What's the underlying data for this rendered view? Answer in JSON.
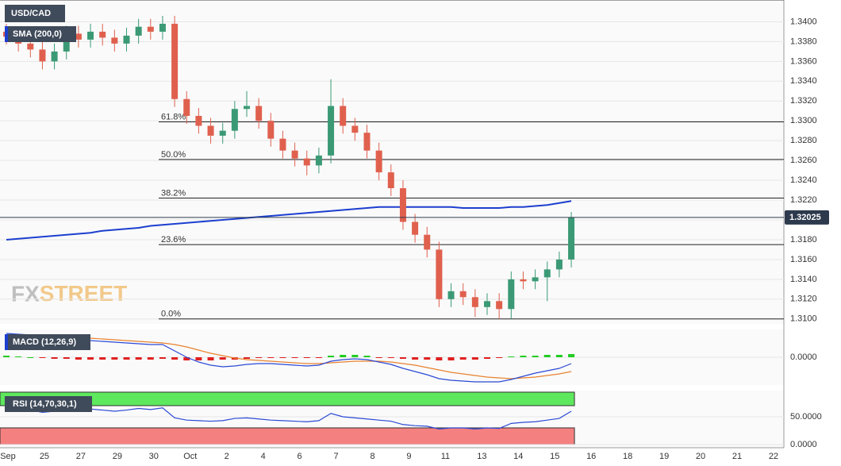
{
  "chart_data": [
    {
      "type": "candlestick",
      "title": "USD/CAD",
      "ylim": [
        1.3095,
        1.3422
      ],
      "yticks": [
        {
          "value": 1.31,
          "label": "1.3100"
        },
        {
          "value": 1.312,
          "label": "1.3120"
        },
        {
          "value": 1.314,
          "label": "1.3140"
        },
        {
          "value": 1.316,
          "label": "1.3160"
        },
        {
          "value": 1.318,
          "label": "1.3180"
        },
        {
          "value": 1.32,
          "label": "1.3200"
        },
        {
          "value": 1.322,
          "label": "1.3220"
        },
        {
          "value": 1.324,
          "label": "1.3240"
        },
        {
          "value": 1.326,
          "label": "1.3260"
        },
        {
          "value": 1.328,
          "label": "1.3280"
        },
        {
          "value": 1.33,
          "label": "1.3300"
        },
        {
          "value": 1.332,
          "label": "1.3320"
        },
        {
          "value": 1.334,
          "label": "1.3340"
        },
        {
          "value": 1.336,
          "label": "1.3360"
        },
        {
          "value": 1.338,
          "label": "1.3380"
        },
        {
          "value": 1.34,
          "label": "1.3400"
        }
      ],
      "xlabels": [
        "Sep",
        "25",
        "27",
        "29",
        "30",
        "Oct",
        "2",
        "4",
        "6",
        "7",
        "8",
        "9",
        "11",
        "13",
        "14",
        "15",
        "16",
        "18",
        "19",
        "20",
        "21",
        "22"
      ],
      "up_color": "#3b9a75",
      "down_color": "#e0604e",
      "grid": true,
      "open": [
        1.339,
        1.3385,
        1.3378,
        1.3372,
        1.336,
        1.337,
        1.3388,
        1.3382,
        1.339,
        1.3384,
        1.3378,
        1.3386,
        1.3395,
        1.339,
        1.3398,
        1.3322,
        1.3305,
        1.3295,
        1.3285,
        1.329,
        1.3312,
        1.3315,
        1.33,
        1.3282,
        1.327,
        1.3262,
        1.3255,
        1.3265,
        1.3315,
        1.3295,
        1.3288,
        1.327,
        1.3248,
        1.3232,
        1.3198,
        1.3185,
        1.317,
        1.312,
        1.3128,
        1.3122,
        1.3112,
        1.3118,
        1.311,
        1.314,
        1.3138,
        1.3142,
        1.315,
        1.316
      ],
      "high": [
        1.3398,
        1.3393,
        1.3386,
        1.338,
        1.3378,
        1.3396,
        1.3396,
        1.3398,
        1.3398,
        1.3392,
        1.3394,
        1.3403,
        1.3403,
        1.3406,
        1.3406,
        1.333,
        1.3313,
        1.3303,
        1.3298,
        1.332,
        1.333,
        1.3323,
        1.3308,
        1.329,
        1.3278,
        1.327,
        1.3273,
        1.3342,
        1.3323,
        1.3303,
        1.3296,
        1.3278,
        1.3256,
        1.324,
        1.3206,
        1.3193,
        1.3178,
        1.3136,
        1.3136,
        1.313,
        1.3126,
        1.3126,
        1.3148,
        1.3148,
        1.315,
        1.3158,
        1.3168,
        1.3208
      ],
      "low": [
        1.3377,
        1.337,
        1.3364,
        1.3352,
        1.3352,
        1.3362,
        1.3374,
        1.3374,
        1.3376,
        1.337,
        1.337,
        1.3378,
        1.3382,
        1.3382,
        1.3314,
        1.3297,
        1.3287,
        1.3277,
        1.3277,
        1.3282,
        1.3304,
        1.3292,
        1.3274,
        1.3262,
        1.3254,
        1.3245,
        1.3247,
        1.3257,
        1.3287,
        1.328,
        1.3262,
        1.324,
        1.3224,
        1.319,
        1.3177,
        1.3162,
        1.3112,
        1.3112,
        1.3114,
        1.3102,
        1.3104,
        1.31,
        1.31,
        1.313,
        1.313,
        1.3118,
        1.3142,
        1.3152
      ],
      "close": [
        1.3385,
        1.3378,
        1.3372,
        1.336,
        1.337,
        1.3388,
        1.3382,
        1.339,
        1.3384,
        1.3378,
        1.3386,
        1.3395,
        1.339,
        1.3398,
        1.3322,
        1.3305,
        1.3295,
        1.3285,
        1.329,
        1.3312,
        1.3315,
        1.33,
        1.3282,
        1.327,
        1.3262,
        1.3255,
        1.3265,
        1.3315,
        1.3295,
        1.3288,
        1.327,
        1.3248,
        1.3232,
        1.3198,
        1.3185,
        1.317,
        1.312,
        1.3128,
        1.3122,
        1.3112,
        1.3118,
        1.311,
        1.314,
        1.3138,
        1.3142,
        1.315,
        1.316,
        1.32025
      ],
      "sma": {
        "name": "SMA (200,0)",
        "color": "#1c3fcf",
        "values": [
          1.318,
          1.3181,
          1.3182,
          1.3183,
          1.3184,
          1.3185,
          1.3186,
          1.3187,
          1.3189,
          1.319,
          1.3191,
          1.3192,
          1.3194,
          1.3195,
          1.3196,
          1.3197,
          1.3198,
          1.3199,
          1.32,
          1.3201,
          1.3202,
          1.3203,
          1.3204,
          1.3205,
          1.3206,
          1.3207,
          1.3208,
          1.3209,
          1.321,
          1.3211,
          1.3212,
          1.3213,
          1.3213,
          1.3213,
          1.3213,
          1.3213,
          1.3213,
          1.3213,
          1.3212,
          1.3212,
          1.3212,
          1.3212,
          1.3213,
          1.3213,
          1.3214,
          1.3215,
          1.3217,
          1.3219
        ]
      },
      "fib": [
        {
          "label": "61.8%",
          "value": 1.3299
        },
        {
          "label": "50.0%",
          "value": 1.3261
        },
        {
          "label": "38.2%",
          "value": 1.3222
        },
        {
          "label": "23.6%",
          "value": 1.3175
        },
        {
          "label": "0.0%",
          "value": 1.31
        }
      ],
      "last": 1.32025
    },
    {
      "type": "macd",
      "title": "MACD (12,26,9)",
      "ylim": [
        -0.0035,
        0.0035
      ],
      "yticks": [
        {
          "value": 0,
          "label": "0.0000"
        }
      ],
      "macd": {
        "color": "#2b4ad6",
        "values": [
          0.003,
          0.0029,
          0.0028,
          0.0026,
          0.0025,
          0.0024,
          0.0022,
          0.0021,
          0.002,
          0.0019,
          0.0018,
          0.0017,
          0.0016,
          0.0016,
          0.0008,
          0.0,
          -0.0006,
          -0.001,
          -0.0012,
          -0.0011,
          -0.0009,
          -0.0008,
          -0.0008,
          -0.0009,
          -0.001,
          -0.0011,
          -0.001,
          -0.0005,
          -0.0003,
          -0.0002,
          -0.0003,
          -0.0006,
          -0.0009,
          -0.0014,
          -0.0018,
          -0.0022,
          -0.0027,
          -0.0029,
          -0.003,
          -0.0031,
          -0.0031,
          -0.0031,
          -0.0028,
          -0.0024,
          -0.002,
          -0.0017,
          -0.0014,
          -0.0008
        ]
      },
      "signal": {
        "color": "#e8822e",
        "values": [
          0.0028,
          0.0028,
          0.0028,
          0.0027,
          0.0027,
          0.0026,
          0.0025,
          0.0024,
          0.0023,
          0.0022,
          0.0021,
          0.002,
          0.0019,
          0.0018,
          0.0016,
          0.0013,
          0.0009,
          0.0005,
          0.0002,
          -0.0001,
          -0.0003,
          -0.0004,
          -0.0005,
          -0.0006,
          -0.0007,
          -0.0008,
          -0.0008,
          -0.0007,
          -0.0006,
          -0.0005,
          -0.0005,
          -0.0005,
          -0.0006,
          -0.0008,
          -0.001,
          -0.0013,
          -0.0016,
          -0.0019,
          -0.0021,
          -0.0023,
          -0.0025,
          -0.0026,
          -0.0027,
          -0.0026,
          -0.0025,
          -0.0023,
          -0.0021,
          -0.0018
        ]
      },
      "histogram": {
        "up_color": "#22cc22",
        "down_color": "#e02020",
        "values": [
          0.0002,
          0.0001,
          0,
          -0.0001,
          -0.0002,
          -0.0002,
          -0.0003,
          -0.0003,
          -0.0003,
          -0.0003,
          -0.0003,
          -0.0003,
          -0.0003,
          -0.0002,
          -0.0003,
          -0.0004,
          -0.0004,
          -0.0004,
          -0.0003,
          -0.0003,
          -0.0002,
          -0.0001,
          -0.0001,
          -0.0001,
          -0.0001,
          -0.0001,
          -0.0001,
          0.0002,
          0.0003,
          0.0003,
          0.0002,
          -0.0001,
          -0.0001,
          -0.0002,
          -0.0003,
          -0.0003,
          -0.0004,
          -0.0004,
          -0.0003,
          -0.0003,
          -0.0002,
          -0.0001,
          0.0001,
          0.0002,
          0.0002,
          0.0003,
          0.0003,
          0.0004
        ]
      }
    },
    {
      "type": "rsi",
      "title": "RSI (14,70,30,1)",
      "ylim": [
        -28.6,
        97.1
      ],
      "yticks": [
        {
          "value": 0,
          "label": "0.0000"
        },
        {
          "value": 50,
          "label": "50.0000"
        }
      ],
      "overbought": 70,
      "oversold": 30,
      "color": "#2b4ad6",
      "values": [
        66,
        64,
        62,
        58,
        60,
        64,
        62,
        64,
        62,
        60,
        62,
        65,
        63,
        66,
        48,
        44,
        43,
        42,
        43,
        47,
        48,
        46,
        44,
        43,
        42,
        41,
        43,
        56,
        50,
        48,
        46,
        44,
        42,
        36,
        34,
        33,
        28,
        30,
        30,
        28,
        30,
        29,
        38,
        40,
        41,
        44,
        47,
        60
      ]
    }
  ]
}
